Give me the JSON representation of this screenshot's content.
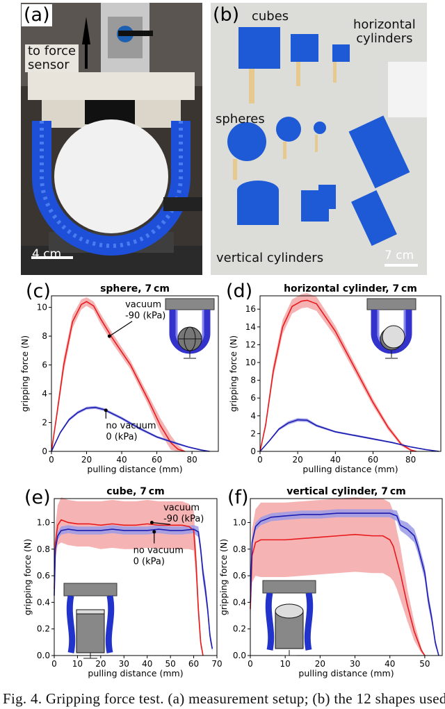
{
  "photo_a": {
    "tag": "(a)",
    "arrow_label_line1": "to force",
    "arrow_label_line2": "sensor",
    "scale_label": "4 cm"
  },
  "photo_b": {
    "tag": "(b)",
    "label_cubes": "cubes",
    "label_horizontal_line1": "horizontal",
    "label_horizontal_line2": "cylinders",
    "label_spheres": "spheres",
    "label_vertical": "vertical cylinders",
    "scale_label": "7 cm"
  },
  "panels": {
    "c": "(c)",
    "d": "(d)",
    "e": "(e)",
    "f": "(f)"
  },
  "caption": "Fig. 4.  Gripping force test. (a) measurement setup; (b) the 12 shapes used",
  "colors": {
    "vacuum": "#e8191c",
    "vacuum_band": "#f4a6a6",
    "no_vacuum": "#1c1cb0",
    "no_vacuum_band": "#9b9be6",
    "gripper_blue": "#1e4fd8"
  },
  "chart_data": [
    {
      "type": "line",
      "title": "sphere, 7 cm",
      "xlabel": "pulling distance (mm)",
      "ylabel": "gripping force (N)",
      "xlim": [
        0,
        95
      ],
      "ylim": [
        0,
        10.8
      ],
      "xticks": [
        0,
        20,
        40,
        60,
        80
      ],
      "yticks": [
        0,
        2,
        4,
        6,
        8,
        10
      ],
      "grid": false,
      "series": [
        {
          "x": [
            0,
            3,
            7,
            12,
            17,
            20,
            24,
            28,
            35,
            45,
            55,
            62,
            68,
            72,
            76
          ],
          "values": [
            0,
            2.5,
            6.0,
            9.0,
            10.2,
            10.4,
            10.1,
            9.2,
            7.8,
            6.0,
            3.6,
            1.8,
            0.6,
            0.15,
            0
          ],
          "band": [
            0,
            0.3,
            0.5,
            0.45,
            0.35,
            0.3,
            0.3,
            0.35,
            0.35,
            0.3,
            0.35,
            0.5,
            0.5,
            0.3,
            0
          ]
        },
        {
          "x": [
            0,
            5,
            10,
            15,
            20,
            25,
            30,
            40,
            50,
            60,
            70,
            78,
            85,
            90
          ],
          "values": [
            0,
            1.3,
            2.2,
            2.7,
            3.0,
            3.05,
            2.9,
            2.3,
            1.6,
            1.0,
            0.6,
            0.3,
            0.1,
            0
          ],
          "band": [
            0,
            0.08,
            0.1,
            0.1,
            0.1,
            0.1,
            0.1,
            0.1,
            0.1,
            0.08,
            0.08,
            0.05,
            0.05,
            0
          ]
        }
      ],
      "annotations": [
        {
          "text_lines": [
            "vacuum",
            "-90 (kPa)"
          ],
          "x": 42,
          "y": 10.0,
          "arrow_to": [
            33,
            8.0
          ]
        },
        {
          "text_lines": [
            "no vacuum",
            "0 (kPa)"
          ],
          "x": 31,
          "y": 1.6,
          "arrow_to": [
            31,
            2.85
          ]
        }
      ]
    },
    {
      "type": "line",
      "title": "horizontal cylinder, 7 cm",
      "xlabel": "pulling distance (mm)",
      "ylabel": "gripping force (N)",
      "xlim": [
        0,
        96
      ],
      "ylim": [
        0,
        17.5
      ],
      "xticks": [
        0,
        20,
        40,
        60,
        80
      ],
      "yticks": [
        0,
        2,
        4,
        6,
        8,
        10,
        12,
        14,
        16
      ],
      "grid": false,
      "series": [
        {
          "x": [
            0,
            3,
            7,
            12,
            17,
            22,
            25,
            30,
            40,
            50,
            60,
            68,
            75,
            80,
            83
          ],
          "values": [
            0,
            3.0,
            9.0,
            14.0,
            16.3,
            16.9,
            17.0,
            16.6,
            13.5,
            9.5,
            5.5,
            2.7,
            0.8,
            0.15,
            0
          ],
          "band": [
            0,
            0.4,
            0.7,
            0.8,
            0.8,
            0.8,
            0.8,
            0.8,
            0.6,
            0.5,
            0.4,
            0.3,
            0.2,
            0.1,
            0
          ]
        },
        {
          "x": [
            0,
            5,
            10,
            15,
            20,
            25,
            30,
            40,
            50,
            60,
            70,
            80,
            88,
            95
          ],
          "values": [
            0,
            1.2,
            2.5,
            3.2,
            3.55,
            3.5,
            2.9,
            2.2,
            1.8,
            1.4,
            1.0,
            0.5,
            0.2,
            0
          ],
          "band": [
            0,
            0.1,
            0.15,
            0.2,
            0.2,
            0.2,
            0.15,
            0.1,
            0.1,
            0.1,
            0.08,
            0.05,
            0.05,
            0
          ]
        }
      ]
    },
    {
      "type": "line",
      "title": "cube, 7 cm",
      "xlabel": "pulling distance (mm)",
      "ylabel": "gripping force (N)",
      "xlim": [
        0,
        70
      ],
      "ylim": [
        0,
        1.18
      ],
      "xticks": [
        0,
        10,
        20,
        30,
        40,
        50,
        60,
        70
      ],
      "yticks": [
        0.0,
        0.2,
        0.4,
        0.6,
        0.8,
        1.0
      ],
      "yticklabels": [
        "0.0",
        "0.2",
        "0.4",
        "0.6",
        "0.8",
        "1.0"
      ],
      "grid": false,
      "series": [
        {
          "x": [
            0,
            0.5,
            1.5,
            3,
            6,
            10,
            15,
            20,
            25,
            30,
            35,
            40,
            45,
            50,
            55,
            58,
            60,
            61,
            62,
            63,
            64
          ],
          "values": [
            0.5,
            0.85,
            0.98,
            1.02,
            1.0,
            0.99,
            0.99,
            0.98,
            0.99,
            0.98,
            0.98,
            0.99,
            0.98,
            0.98,
            0.98,
            0.97,
            0.94,
            0.7,
            0.35,
            0.1,
            0
          ],
          "band": [
            0.05,
            0.12,
            0.15,
            0.17,
            0.17,
            0.17,
            0.17,
            0.18,
            0.18,
            0.18,
            0.18,
            0.18,
            0.18,
            0.18,
            0.18,
            0.17,
            0.15,
            0.12,
            0.08,
            0.04,
            0
          ]
        },
        {
          "x": [
            0,
            0.5,
            1.5,
            3,
            6,
            10,
            15,
            20,
            25,
            30,
            35,
            40,
            45,
            50,
            55,
            60,
            62,
            63,
            64,
            65,
            66,
            67,
            68
          ],
          "values": [
            0.45,
            0.8,
            0.9,
            0.94,
            0.95,
            0.94,
            0.94,
            0.94,
            0.95,
            0.94,
            0.94,
            0.94,
            0.95,
            0.94,
            0.94,
            0.95,
            0.93,
            0.8,
            0.62,
            0.5,
            0.35,
            0.15,
            0.05
          ],
          "band": [
            0.02,
            0.03,
            0.03,
            0.03,
            0.03,
            0.03,
            0.03,
            0.03,
            0.03,
            0.03,
            0.03,
            0.03,
            0.03,
            0.03,
            0.03,
            0.03,
            0.04,
            0.05,
            0.06,
            0.06,
            0.05,
            0.04,
            0.02
          ]
        }
      ],
      "annotations": [
        {
          "text_lines": [
            "vacuum",
            "-90 (kPa)"
          ],
          "x": 47,
          "y": 1.09,
          "arrow_to": [
            42,
            1.0
          ]
        },
        {
          "text_lines": [
            "no vacuum",
            "0 (kPa)"
          ],
          "x": 34,
          "y": 0.77,
          "arrow_to": [
            43,
            0.93
          ]
        }
      ]
    },
    {
      "type": "line",
      "title": "vertical cylinder, 7 cm",
      "xlabel": "pulling distance (mm)",
      "ylabel": "gripping force (N)",
      "xlim": [
        0,
        55
      ],
      "ylim": [
        0,
        1.18
      ],
      "xticks": [
        0,
        10,
        20,
        30,
        40,
        50
      ],
      "yticks": [
        0.0,
        0.2,
        0.4,
        0.6,
        0.8,
        1.0
      ],
      "yticklabels": [
        "0.0",
        "0.2",
        "0.4",
        "0.6",
        "0.8",
        "1.0"
      ],
      "grid": false,
      "series": [
        {
          "x": [
            0,
            0.5,
            1.5,
            3,
            6,
            10,
            15,
            20,
            25,
            30,
            35,
            38,
            40,
            41,
            42,
            43,
            44,
            45,
            47,
            49,
            50
          ],
          "values": [
            0.35,
            0.75,
            0.85,
            0.87,
            0.87,
            0.87,
            0.88,
            0.89,
            0.9,
            0.91,
            0.9,
            0.9,
            0.87,
            0.82,
            0.72,
            0.62,
            0.5,
            0.38,
            0.18,
            0.04,
            0
          ],
          "band": [
            0.1,
            0.2,
            0.25,
            0.28,
            0.28,
            0.28,
            0.28,
            0.28,
            0.28,
            0.28,
            0.28,
            0.28,
            0.28,
            0.26,
            0.22,
            0.2,
            0.16,
            0.12,
            0.07,
            0.02,
            0
          ]
        },
        {
          "x": [
            0,
            0.5,
            1.5,
            3,
            6,
            10,
            15,
            20,
            25,
            30,
            35,
            40,
            42,
            43,
            45,
            47,
            48,
            50,
            51,
            52,
            53,
            54
          ],
          "values": [
            0.4,
            0.85,
            0.97,
            1.01,
            1.04,
            1.05,
            1.06,
            1.06,
            1.07,
            1.07,
            1.07,
            1.07,
            1.05,
            0.98,
            0.95,
            0.9,
            0.82,
            0.62,
            0.42,
            0.28,
            0.1,
            0
          ],
          "band": [
            0.02,
            0.03,
            0.03,
            0.03,
            0.03,
            0.03,
            0.03,
            0.03,
            0.03,
            0.03,
            0.03,
            0.03,
            0.04,
            0.04,
            0.05,
            0.05,
            0.05,
            0.05,
            0.05,
            0.04,
            0.03,
            0
          ]
        }
      ]
    }
  ]
}
